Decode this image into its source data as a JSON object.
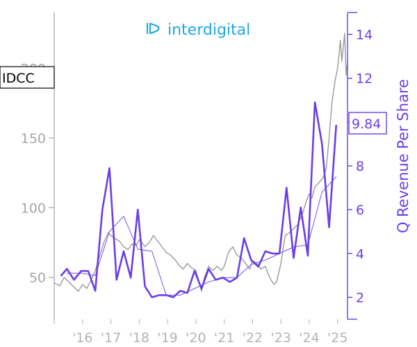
{
  "chart_data": {
    "type": "line",
    "title": "",
    "logo": {
      "text": "interdigital",
      "color": "#20a8e0"
    },
    "ticker": "IDCC",
    "last_value_label": "9.84",
    "xlabel": "",
    "ylabel_left": "",
    "ylabel_right": "Q Revenue Per Share",
    "x_ticks": [
      "'16",
      "'17",
      "'18",
      "'19",
      "'20",
      "'21",
      "'22",
      "'23",
      "'24",
      "'25"
    ],
    "x_range": [
      2015.0,
      2025.35
    ],
    "y_left": {
      "ticks": [
        50,
        100,
        150,
        200
      ],
      "range": [
        20,
        240
      ],
      "color": "#a6a6a6"
    },
    "y_right": {
      "ticks": [
        2,
        4,
        6,
        8,
        10,
        12,
        14
      ],
      "range": [
        1,
        15
      ],
      "color": "#6a3ee8"
    },
    "grid": false,
    "series": [
      {
        "name": "",
        "axis": "left",
        "color": "#999999",
        "style": "price",
        "points": [
          [
            2015.0,
            46
          ],
          [
            2015.2,
            44
          ],
          [
            2015.35,
            50
          ],
          [
            2015.5,
            47
          ],
          [
            2015.7,
            43
          ],
          [
            2015.85,
            40
          ],
          [
            2016.0,
            45
          ],
          [
            2016.15,
            42
          ],
          [
            2016.3,
            48
          ],
          [
            2016.45,
            55
          ],
          [
            2016.6,
            65
          ],
          [
            2016.75,
            75
          ],
          [
            2016.9,
            82
          ],
          [
            2017.0,
            80
          ],
          [
            2017.15,
            78
          ],
          [
            2017.3,
            76
          ],
          [
            2017.45,
            72
          ],
          [
            2017.6,
            70
          ],
          [
            2017.75,
            74
          ],
          [
            2017.9,
            73
          ],
          [
            2018.0,
            77
          ],
          [
            2018.1,
            75
          ],
          [
            2018.2,
            72
          ],
          [
            2018.35,
            75
          ],
          [
            2018.5,
            80
          ],
          [
            2018.65,
            76
          ],
          [
            2018.8,
            72
          ],
          [
            2018.95,
            68
          ],
          [
            2019.1,
            66
          ],
          [
            2019.25,
            63
          ],
          [
            2019.4,
            59
          ],
          [
            2019.55,
            56
          ],
          [
            2019.7,
            60
          ],
          [
            2019.85,
            57
          ],
          [
            2020.0,
            55
          ],
          [
            2020.1,
            48
          ],
          [
            2020.2,
            40
          ],
          [
            2020.3,
            50
          ],
          [
            2020.45,
            58
          ],
          [
            2020.6,
            55
          ],
          [
            2020.75,
            58
          ],
          [
            2020.9,
            55
          ],
          [
            2021.0,
            58
          ],
          [
            2021.15,
            68
          ],
          [
            2021.3,
            72
          ],
          [
            2021.45,
            66
          ],
          [
            2021.6,
            64
          ],
          [
            2021.75,
            60
          ],
          [
            2021.9,
            56
          ],
          [
            2022.0,
            62
          ],
          [
            2022.15,
            60
          ],
          [
            2022.3,
            56
          ],
          [
            2022.45,
            58
          ],
          [
            2022.6,
            50
          ],
          [
            2022.75,
            45
          ],
          [
            2022.85,
            47
          ],
          [
            2023.0,
            60
          ],
          [
            2023.15,
            80
          ],
          [
            2023.3,
            82
          ],
          [
            2023.45,
            85
          ],
          [
            2023.6,
            88
          ],
          [
            2023.75,
            95
          ],
          [
            2023.9,
            105
          ],
          [
            2024.0,
            110
          ],
          [
            2024.1,
            107
          ],
          [
            2024.2,
            115
          ],
          [
            2024.35,
            118
          ],
          [
            2024.5,
            122
          ],
          [
            2024.6,
            128
          ],
          [
            2024.7,
            150
          ],
          [
            2024.8,
            175
          ],
          [
            2024.9,
            190
          ],
          [
            2025.0,
            200
          ],
          [
            2025.05,
            210
          ],
          [
            2025.1,
            220
          ],
          [
            2025.15,
            205
          ],
          [
            2025.2,
            215
          ],
          [
            2025.25,
            225
          ],
          [
            2025.3,
            195
          ],
          [
            2025.35,
            205
          ]
        ]
      },
      {
        "name": "",
        "axis": "right",
        "color": "#6a3ee8",
        "style": "thick",
        "points": [
          [
            2015.25,
            3.0
          ],
          [
            2015.45,
            3.3
          ],
          [
            2015.7,
            2.8
          ],
          [
            2015.95,
            3.2
          ],
          [
            2016.2,
            3.2
          ],
          [
            2016.45,
            2.3
          ],
          [
            2016.7,
            6.0
          ],
          [
            2016.95,
            7.9
          ],
          [
            2017.2,
            2.8
          ],
          [
            2017.45,
            4.1
          ],
          [
            2017.7,
            2.9
          ],
          [
            2017.95,
            6.0
          ],
          [
            2018.2,
            2.5
          ],
          [
            2018.45,
            2.0
          ],
          [
            2018.7,
            2.1
          ],
          [
            2018.95,
            2.1
          ],
          [
            2019.2,
            2.0
          ],
          [
            2019.45,
            2.3
          ],
          [
            2019.7,
            2.2
          ],
          [
            2019.95,
            3.2
          ],
          [
            2020.2,
            2.4
          ],
          [
            2020.45,
            3.3
          ],
          [
            2020.7,
            2.8
          ],
          [
            2020.95,
            2.9
          ],
          [
            2021.2,
            2.7
          ],
          [
            2021.45,
            2.9
          ],
          [
            2021.7,
            4.7
          ],
          [
            2021.95,
            3.7
          ],
          [
            2022.2,
            3.4
          ],
          [
            2022.45,
            4.1
          ],
          [
            2022.7,
            4.0
          ],
          [
            2022.95,
            4.0
          ],
          [
            2023.2,
            7.0
          ],
          [
            2023.45,
            3.8
          ],
          [
            2023.7,
            6.1
          ],
          [
            2023.95,
            3.9
          ],
          [
            2024.2,
            10.9
          ],
          [
            2024.45,
            9.0
          ],
          [
            2024.7,
            5.2
          ],
          [
            2024.95,
            9.84
          ]
        ]
      },
      {
        "name": "",
        "axis": "right",
        "color": "#6a3ee8",
        "style": "thin",
        "points": [
          [
            2015.45,
            3.1
          ],
          [
            2015.95,
            3.1
          ],
          [
            2016.45,
            3.0
          ],
          [
            2016.95,
            5.0
          ],
          [
            2017.45,
            5.7
          ],
          [
            2017.95,
            4.2
          ],
          [
            2018.45,
            4.1
          ],
          [
            2018.95,
            2.1
          ],
          [
            2019.45,
            2.1
          ],
          [
            2019.95,
            2.4
          ],
          [
            2020.45,
            2.7
          ],
          [
            2020.95,
            2.9
          ],
          [
            2021.45,
            2.9
          ],
          [
            2021.95,
            3.5
          ],
          [
            2022.45,
            3.7
          ],
          [
            2022.95,
            4.0
          ],
          [
            2023.45,
            4.3
          ],
          [
            2023.95,
            4.4
          ],
          [
            2024.45,
            6.8
          ],
          [
            2024.95,
            7.5
          ]
        ]
      }
    ]
  }
}
